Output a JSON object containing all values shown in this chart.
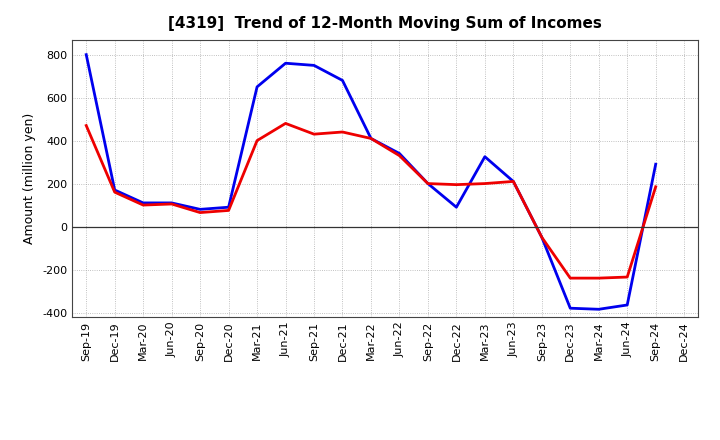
{
  "title": "[4319]  Trend of 12-Month Moving Sum of Incomes",
  "ylabel": "Amount (million yen)",
  "x_labels": [
    "Sep-19",
    "Dec-19",
    "Mar-20",
    "Jun-20",
    "Sep-20",
    "Dec-20",
    "Mar-21",
    "Jun-21",
    "Sep-21",
    "Dec-21",
    "Mar-22",
    "Jun-22",
    "Sep-22",
    "Dec-22",
    "Mar-23",
    "Jun-23",
    "Sep-23",
    "Dec-23",
    "Mar-24",
    "Jun-24",
    "Sep-24",
    "Dec-24"
  ],
  "ordinary_income": [
    800,
    170,
    110,
    110,
    80,
    90,
    650,
    760,
    750,
    680,
    410,
    340,
    200,
    90,
    325,
    210,
    -50,
    -380,
    -385,
    -365,
    290,
    null
  ],
  "net_income": [
    470,
    160,
    100,
    105,
    65,
    75,
    400,
    480,
    430,
    440,
    410,
    330,
    200,
    195,
    200,
    210,
    -50,
    -240,
    -240,
    -235,
    185,
    null
  ],
  "ylim": [
    -420,
    870
  ],
  "yticks": [
    -400,
    -200,
    0,
    200,
    400,
    600,
    800
  ],
  "ordinary_color": "#0000ee",
  "net_color": "#ee0000",
  "background_color": "#ffffff",
  "grid_color": "#999999",
  "line_width": 2.0,
  "title_fontsize": 11,
  "ylabel_fontsize": 9,
  "tick_fontsize": 8
}
